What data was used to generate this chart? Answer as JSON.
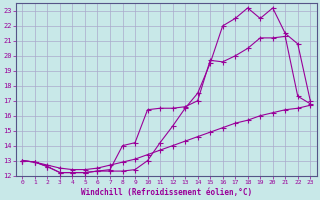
{
  "background_color": "#c8e8e8",
  "grid_color": "#aaaacc",
  "line_color": "#990099",
  "xlabel": "Windchill (Refroidissement éolien,°C)",
  "xlim": [
    -0.5,
    23.5
  ],
  "ylim": [
    12,
    23.5
  ],
  "xticks": [
    0,
    1,
    2,
    3,
    4,
    5,
    6,
    7,
    8,
    9,
    10,
    11,
    12,
    13,
    14,
    15,
    16,
    17,
    18,
    19,
    20,
    21,
    22,
    23
  ],
  "yticks": [
    12,
    13,
    14,
    15,
    16,
    17,
    18,
    19,
    20,
    21,
    22,
    23
  ],
  "line1_x": [
    0,
    1,
    2,
    3,
    4,
    5,
    6,
    7,
    8,
    9,
    10,
    11,
    12,
    13,
    14,
    15,
    16,
    17,
    18,
    19,
    20,
    21,
    22,
    23
  ],
  "line1_y": [
    13.0,
    12.9,
    12.7,
    12.5,
    12.4,
    12.4,
    12.5,
    12.7,
    12.9,
    13.1,
    13.4,
    13.7,
    14.0,
    14.3,
    14.6,
    14.9,
    15.2,
    15.5,
    15.7,
    16.0,
    16.2,
    16.4,
    16.5,
    16.7
  ],
  "line2_x": [
    0,
    1,
    2,
    3,
    4,
    5,
    6,
    7,
    8,
    9,
    10,
    11,
    12,
    13,
    14,
    15,
    16,
    17,
    18,
    19,
    20,
    21,
    22,
    23
  ],
  "line2_y": [
    13.0,
    12.9,
    12.6,
    12.2,
    12.2,
    12.2,
    12.3,
    12.4,
    14.0,
    14.2,
    16.4,
    16.5,
    16.5,
    16.6,
    17.0,
    19.7,
    19.6,
    20.0,
    20.5,
    21.2,
    21.2,
    21.3,
    17.3,
    16.8
  ],
  "line3_x": [
    0,
    1,
    2,
    3,
    4,
    5,
    6,
    7,
    8,
    9,
    10,
    11,
    12,
    13,
    14,
    15,
    16,
    17,
    18,
    19,
    20,
    21,
    22,
    23
  ],
  "line3_y": [
    13.0,
    12.9,
    12.6,
    12.2,
    12.2,
    12.2,
    12.3,
    12.3,
    12.3,
    12.4,
    13.0,
    14.2,
    15.3,
    16.5,
    17.5,
    19.5,
    22.0,
    22.5,
    23.2,
    22.5,
    23.2,
    21.5,
    20.8,
    17.0
  ]
}
